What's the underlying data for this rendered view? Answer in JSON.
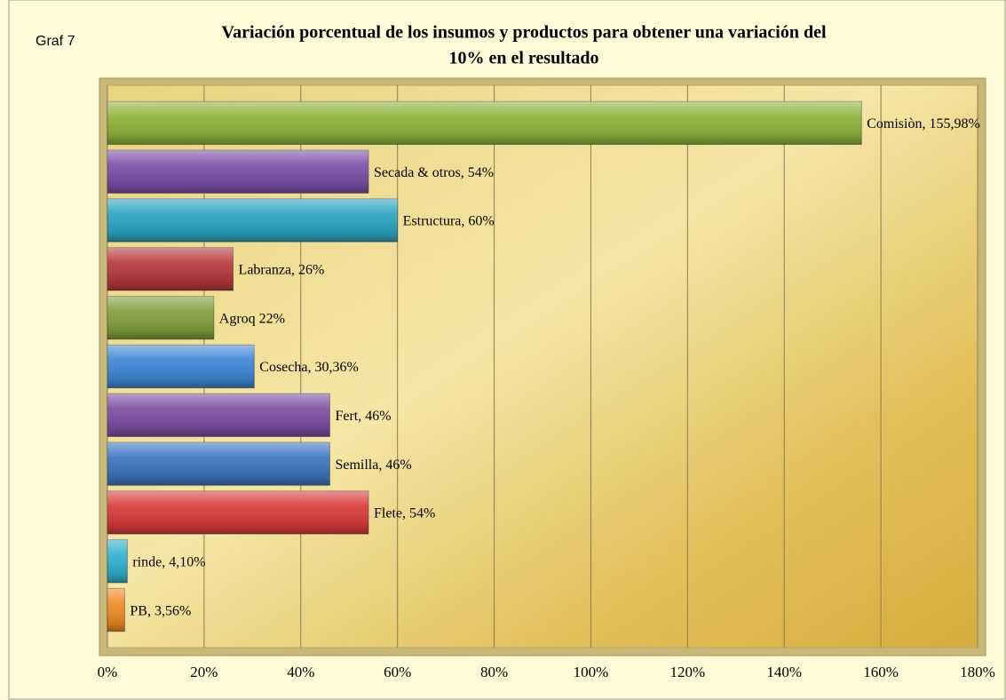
{
  "chart_data": {
    "type": "bar",
    "orientation": "horizontal",
    "caption": "Graf 7",
    "title": [
      "Variación porcentual de los insumos y productos para obtener una variación del",
      "10% en el resultado"
    ],
    "values": [
      155.98,
      54,
      60,
      26,
      22,
      30.36,
      46,
      46,
      54,
      4.1,
      3.56
    ],
    "value_labels": [
      "Comisiòn, 155,98%",
      "Secada & otros, 54%",
      "Estructura, 60%",
      "Labranza, 26%",
      "Agroq 22%",
      "Cosecha, 30,36%",
      "Fert, 46%",
      "Semilla, 46%",
      "Flete, 54%",
      "rinde, 4,10%",
      "PB, 3,56%"
    ],
    "colors": [
      "#8db33a",
      "#7b4ea8",
      "#2aa5c2",
      "#b8383a",
      "#7fa03a",
      "#3d86d6",
      "#7b4ea3",
      "#3a76c0",
      "#d93a3a",
      "#2fb0d0",
      "#ef8a24"
    ],
    "xlim": [
      0,
      180
    ],
    "xticks": [
      {
        "value": 0,
        "label": "0%"
      },
      {
        "value": 20,
        "label": "20%"
      },
      {
        "value": 40,
        "label": "40%"
      },
      {
        "value": 60,
        "label": "60%"
      },
      {
        "value": 80,
        "label": "80%"
      },
      {
        "value": 100,
        "label": "100%"
      },
      {
        "value": 120,
        "label": "120%"
      },
      {
        "value": 140,
        "label": "140%"
      },
      {
        "value": 160,
        "label": "160%"
      },
      {
        "value": 180,
        "label": "180%"
      }
    ],
    "grid": true
  }
}
